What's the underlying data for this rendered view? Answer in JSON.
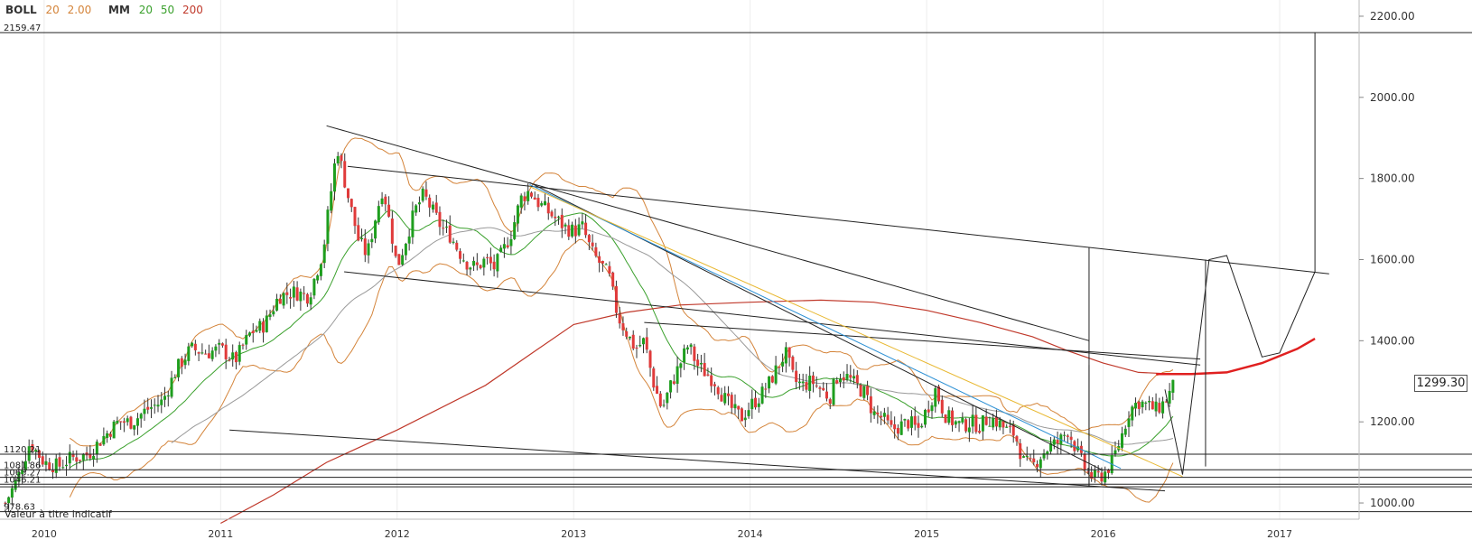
{
  "indicators": {
    "boll": {
      "name": "BOLL",
      "period": "20",
      "dev": "2.00",
      "period_color": "#d4843a",
      "dev_color": "#d4843a"
    },
    "mm": {
      "name": "MM",
      "p1": "20",
      "p2": "50",
      "p3": "200",
      "c1": "#3aa02c",
      "c2": "#999999",
      "c3": "#c0392b"
    }
  },
  "note": "Valeur à titre indicatif",
  "last_price": "1299.30",
  "colors": {
    "up": "#1e9e1e",
    "down": "#e03a3a",
    "bb": "#d4843a",
    "ma20": "#3aa02c",
    "ma50": "#9a9a9a",
    "ma200": "#c0392b",
    "blue": "#2a8fd4",
    "yellow": "#e8b830",
    "proj": "#e02020"
  },
  "chart_data": {
    "type": "candlestick",
    "x_ticks": [
      "2010",
      "2011",
      "2012",
      "2013",
      "2014",
      "2015",
      "2016",
      "2017"
    ],
    "y_ticks": [
      "1000.00",
      "1200.00",
      "1400.00",
      "1600.00",
      "1800.00",
      "2000.00",
      "2200.00"
    ],
    "ylim": [
      960,
      2240
    ],
    "xlim": [
      2009.75,
      2017.45
    ],
    "h_levels": [
      {
        "label": "2159.47",
        "value": 2159.47
      },
      {
        "label": "1120.21",
        "value": 1120.21
      },
      {
        "label": "1081.86",
        "value": 1081.86
      },
      {
        "label": "1063.27",
        "value": 1063.27
      },
      {
        "label": "1046.21",
        "value": 1046.21
      },
      {
        "label": "",
        "value": 1040
      },
      {
        "label": "978.63",
        "value": 978.63
      }
    ],
    "price_path": [
      [
        2009.78,
        1000
      ],
      [
        2009.85,
        1060
      ],
      [
        2009.92,
        1150
      ],
      [
        2010.0,
        1100
      ],
      [
        2010.08,
        1090
      ],
      [
        2010.15,
        1110
      ],
      [
        2010.25,
        1120
      ],
      [
        2010.33,
        1160
      ],
      [
        2010.42,
        1200
      ],
      [
        2010.5,
        1200
      ],
      [
        2010.58,
        1230
      ],
      [
        2010.67,
        1250
      ],
      [
        2010.75,
        1330
      ],
      [
        2010.83,
        1380
      ],
      [
        2010.92,
        1370
      ],
      [
        2011.0,
        1380
      ],
      [
        2011.08,
        1350
      ],
      [
        2011.17,
        1420
      ],
      [
        2011.25,
        1440
      ],
      [
        2011.33,
        1510
      ],
      [
        2011.42,
        1520
      ],
      [
        2011.5,
        1510
      ],
      [
        2011.58,
        1620
      ],
      [
        2011.62,
        1750
      ],
      [
        2011.66,
        1880
      ],
      [
        2011.72,
        1760
      ],
      [
        2011.78,
        1650
      ],
      [
        2011.83,
        1610
      ],
      [
        2011.88,
        1710
      ],
      [
        2011.92,
        1780
      ],
      [
        2011.97,
        1660
      ],
      [
        2012.0,
        1580
      ],
      [
        2012.05,
        1650
      ],
      [
        2012.1,
        1720
      ],
      [
        2012.15,
        1760
      ],
      [
        2012.2,
        1720
      ],
      [
        2012.25,
        1680
      ],
      [
        2012.3,
        1660
      ],
      [
        2012.35,
        1620
      ],
      [
        2012.4,
        1590
      ],
      [
        2012.45,
        1580
      ],
      [
        2012.5,
        1600
      ],
      [
        2012.55,
        1580
      ],
      [
        2012.6,
        1620
      ],
      [
        2012.65,
        1670
      ],
      [
        2012.7,
        1750
      ],
      [
        2012.75,
        1770
      ],
      [
        2012.8,
        1740
      ],
      [
        2012.85,
        1720
      ],
      [
        2012.9,
        1700
      ],
      [
        2012.95,
        1680
      ],
      [
        2013.0,
        1670
      ],
      [
        2013.05,
        1680
      ],
      [
        2013.1,
        1620
      ],
      [
        2013.15,
        1590
      ],
      [
        2013.2,
        1560
      ],
      [
        2013.25,
        1460
      ],
      [
        2013.3,
        1420
      ],
      [
        2013.35,
        1380
      ],
      [
        2013.4,
        1400
      ],
      [
        2013.45,
        1300
      ],
      [
        2013.5,
        1230
      ],
      [
        2013.55,
        1290
      ],
      [
        2013.6,
        1340
      ],
      [
        2013.65,
        1390
      ],
      [
        2013.7,
        1340
      ],
      [
        2013.75,
        1320
      ],
      [
        2013.8,
        1300
      ],
      [
        2013.85,
        1260
      ],
      [
        2013.9,
        1230
      ],
      [
        2013.95,
        1210
      ],
      [
        2014.0,
        1240
      ],
      [
        2014.05,
        1260
      ],
      [
        2014.1,
        1290
      ],
      [
        2014.15,
        1330
      ],
      [
        2014.2,
        1370
      ],
      [
        2014.25,
        1300
      ],
      [
        2014.3,
        1290
      ],
      [
        2014.35,
        1300
      ],
      [
        2014.4,
        1280
      ],
      [
        2014.45,
        1260
      ],
      [
        2014.5,
        1320
      ],
      [
        2014.55,
        1310
      ],
      [
        2014.6,
        1290
      ],
      [
        2014.65,
        1270
      ],
      [
        2014.7,
        1220
      ],
      [
        2014.75,
        1210
      ],
      [
        2014.8,
        1180
      ],
      [
        2014.85,
        1190
      ],
      [
        2014.9,
        1200
      ],
      [
        2014.95,
        1180
      ],
      [
        2015.0,
        1230
      ],
      [
        2015.05,
        1280
      ],
      [
        2015.1,
        1220
      ],
      [
        2015.15,
        1200
      ],
      [
        2015.2,
        1190
      ],
      [
        2015.25,
        1200
      ],
      [
        2015.3,
        1190
      ],
      [
        2015.35,
        1210
      ],
      [
        2015.4,
        1200
      ],
      [
        2015.45,
        1180
      ],
      [
        2015.5,
        1170
      ],
      [
        2015.55,
        1100
      ],
      [
        2015.6,
        1090
      ],
      [
        2015.65,
        1120
      ],
      [
        2015.7,
        1140
      ],
      [
        2015.75,
        1150
      ],
      [
        2015.8,
        1180
      ],
      [
        2015.85,
        1130
      ],
      [
        2015.9,
        1080
      ],
      [
        2015.95,
        1060
      ],
      [
        2016.0,
        1070
      ],
      [
        2016.05,
        1100
      ],
      [
        2016.1,
        1160
      ],
      [
        2016.15,
        1230
      ],
      [
        2016.2,
        1250
      ],
      [
        2016.25,
        1240
      ],
      [
        2016.3,
        1230
      ],
      [
        2016.35,
        1250
      ],
      [
        2016.4,
        1290
      ]
    ],
    "series": [
      {
        "name": "MM 200",
        "color": "#c0392b",
        "points": [
          [
            2011.0,
            950
          ],
          [
            2011.3,
            1020
          ],
          [
            2011.6,
            1100
          ],
          [
            2012.0,
            1180
          ],
          [
            2012.5,
            1290
          ],
          [
            2012.8,
            1380
          ],
          [
            2013.0,
            1440
          ],
          [
            2013.3,
            1470
          ],
          [
            2013.6,
            1488
          ],
          [
            2014.0,
            1495
          ],
          [
            2014.4,
            1500
          ],
          [
            2014.7,
            1495
          ],
          [
            2015.0,
            1475
          ],
          [
            2015.3,
            1445
          ],
          [
            2015.6,
            1410
          ],
          [
            2015.8,
            1375
          ],
          [
            2016.0,
            1345
          ],
          [
            2016.2,
            1322
          ],
          [
            2016.4,
            1318
          ]
        ]
      },
      {
        "name": "Projection",
        "color": "#e02020",
        "points": [
          [
            2016.3,
            1318
          ],
          [
            2016.5,
            1318
          ],
          [
            2016.7,
            1322
          ],
          [
            2016.9,
            1345
          ],
          [
            2017.1,
            1380
          ],
          [
            2017.2,
            1405
          ]
        ]
      }
    ],
    "trendlines": [
      {
        "color": "#222",
        "points": [
          [
            2011.6,
            1930
          ],
          [
            2015.92,
            1400
          ]
        ]
      },
      {
        "color": "#222",
        "points": [
          [
            2011.72,
            1830
          ],
          [
            2016.55,
            1600
          ],
          [
            2017.28,
            1565
          ]
        ]
      },
      {
        "color": "#222",
        "points": [
          [
            2011.7,
            1570
          ],
          [
            2016.55,
            1340
          ]
        ]
      },
      {
        "color": "#222",
        "points": [
          [
            2013.4,
            1445
          ],
          [
            2016.55,
            1355
          ]
        ]
      },
      {
        "color": "#222",
        "points": [
          [
            2011.05,
            1180
          ],
          [
            2016.35,
            1030
          ]
        ]
      },
      {
        "color": "#222",
        "points": [
          [
            2012.75,
            1790
          ],
          [
            2016.0,
            1080
          ]
        ]
      },
      {
        "color": "#2a8fd4",
        "points": [
          [
            2012.75,
            1785
          ],
          [
            2016.1,
            1085
          ]
        ]
      },
      {
        "color": "#e8b830",
        "points": [
          [
            2012.75,
            1780
          ],
          [
            2016.45,
            1065
          ]
        ]
      }
    ],
    "projection": [
      [
        2016.35,
        1280
      ],
      [
        2016.45,
        1070
      ],
      [
        2016.6,
        1600
      ],
      [
        2016.7,
        1610
      ],
      [
        2016.9,
        1360
      ],
      [
        2017.0,
        1370
      ],
      [
        2017.2,
        1570
      ],
      [
        2017.2,
        2159.47
      ]
    ],
    "vertical_lines": [
      [
        2015.92,
        1040,
        1630
      ],
      [
        2015.92,
        1040,
        1340
      ]
    ]
  }
}
